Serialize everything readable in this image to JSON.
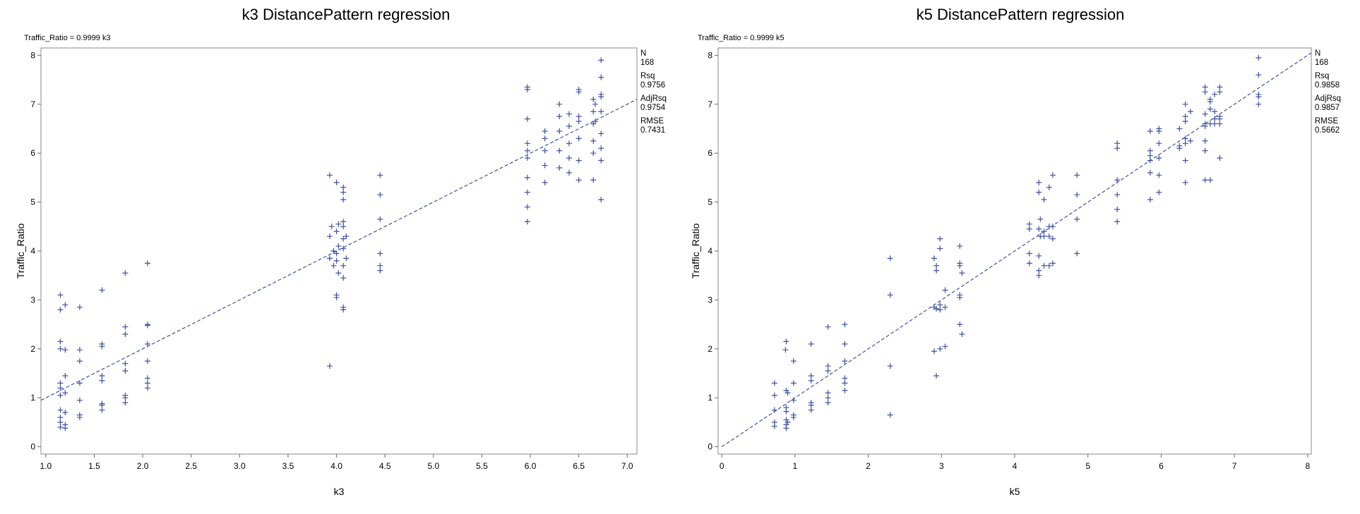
{
  "accent": "#3f51a3",
  "chart_data": [
    {
      "type": "scatter",
      "title": "k3 DistancePattern regression",
      "equation": "Traffic_Ratio = 0.9999 k3",
      "xlabel": "k3",
      "ylabel": "Traffic_Ratio",
      "xlim": [
        0.95,
        7.1
      ],
      "ylim": [
        -0.15,
        8.15
      ],
      "xticks": [
        "1.0",
        "1.5",
        "2.0",
        "2.5",
        "3.0",
        "3.5",
        "4.0",
        "4.5",
        "5.0",
        "5.5",
        "6.0",
        "6.5",
        "7.0"
      ],
      "yticks": [
        "0",
        "1",
        "2",
        "3",
        "4",
        "5",
        "6",
        "7",
        "8"
      ],
      "grid": false,
      "marker": "+",
      "fit": {
        "slope": 0.9999,
        "x_range": [
          0.95,
          7.1
        ]
      },
      "stats": [
        {
          "label": "N",
          "value": "168"
        },
        {
          "label": "Rsq",
          "value": "0.9756"
        },
        {
          "label": "AdjRsq",
          "value": "0.9754"
        },
        {
          "label": "RMSE",
          "value": "0.7431"
        }
      ],
      "points": [
        [
          1.15,
          3.1
        ],
        [
          1.15,
          2.8
        ],
        [
          1.2,
          2.9
        ],
        [
          1.15,
          2.15
        ],
        [
          1.15,
          2.0
        ],
        [
          1.2,
          1.98
        ],
        [
          1.2,
          1.45
        ],
        [
          1.15,
          1.3
        ],
        [
          1.15,
          1.2
        ],
        [
          1.2,
          1.1
        ],
        [
          1.15,
          1.05
        ],
        [
          1.15,
          0.75
        ],
        [
          1.2,
          0.7
        ],
        [
          1.15,
          0.6
        ],
        [
          1.15,
          0.5
        ],
        [
          1.2,
          0.45
        ],
        [
          1.15,
          0.4
        ],
        [
          1.2,
          0.38
        ],
        [
          1.35,
          2.85
        ],
        [
          1.35,
          1.98
        ],
        [
          1.35,
          1.75
        ],
        [
          1.35,
          1.3
        ],
        [
          1.35,
          0.95
        ],
        [
          1.35,
          0.65
        ],
        [
          1.35,
          0.6
        ],
        [
          1.58,
          3.2
        ],
        [
          1.58,
          2.1
        ],
        [
          1.58,
          2.05
        ],
        [
          1.58,
          1.45
        ],
        [
          1.58,
          1.35
        ],
        [
          1.58,
          0.88
        ],
        [
          1.58,
          0.85
        ],
        [
          1.58,
          0.75
        ],
        [
          1.82,
          3.55
        ],
        [
          1.82,
          2.45
        ],
        [
          1.82,
          2.3
        ],
        [
          1.82,
          1.7
        ],
        [
          1.82,
          1.55
        ],
        [
          1.82,
          1.05
        ],
        [
          1.82,
          1.0
        ],
        [
          1.82,
          0.9
        ],
        [
          2.05,
          3.75
        ],
        [
          2.05,
          2.5
        ],
        [
          2.05,
          2.48
        ],
        [
          2.05,
          2.1
        ],
        [
          2.05,
          1.75
        ],
        [
          2.05,
          1.4
        ],
        [
          2.05,
          1.3
        ],
        [
          2.05,
          1.2
        ],
        [
          3.93,
          5.55
        ],
        [
          3.95,
          4.5
        ],
        [
          3.93,
          4.3
        ],
        [
          3.97,
          4.0
        ],
        [
          3.93,
          3.85
        ],
        [
          3.97,
          3.7
        ],
        [
          3.93,
          1.65
        ],
        [
          4.0,
          5.4
        ],
        [
          4.02,
          4.55
        ],
        [
          4.0,
          4.4
        ],
        [
          4.02,
          4.1
        ],
        [
          4.0,
          3.95
        ],
        [
          4.0,
          3.8
        ],
        [
          4.02,
          3.55
        ],
        [
          4.0,
          3.1
        ],
        [
          4.0,
          3.05
        ],
        [
          4.07,
          5.3
        ],
        [
          4.07,
          5.2
        ],
        [
          4.07,
          5.05
        ],
        [
          4.07,
          4.6
        ],
        [
          4.07,
          4.5
        ],
        [
          4.1,
          4.3
        ],
        [
          4.07,
          4.25
        ],
        [
          4.07,
          4.05
        ],
        [
          4.1,
          3.85
        ],
        [
          4.07,
          3.7
        ],
        [
          4.07,
          3.45
        ],
        [
          4.07,
          2.85
        ],
        [
          4.07,
          2.8
        ],
        [
          4.45,
          5.55
        ],
        [
          4.45,
          5.15
        ],
        [
          4.45,
          4.65
        ],
        [
          4.45,
          3.95
        ],
        [
          4.45,
          3.7
        ],
        [
          4.45,
          3.6
        ],
        [
          5.97,
          7.35
        ],
        [
          5.97,
          7.3
        ],
        [
          5.97,
          6.7
        ],
        [
          5.97,
          6.2
        ],
        [
          5.97,
          6.05
        ],
        [
          5.97,
          5.9
        ],
        [
          5.97,
          5.5
        ],
        [
          5.97,
          5.2
        ],
        [
          5.97,
          4.9
        ],
        [
          5.97,
          4.6
        ],
        [
          6.15,
          6.45
        ],
        [
          6.15,
          6.3
        ],
        [
          6.15,
          6.05
        ],
        [
          6.15,
          5.75
        ],
        [
          6.15,
          5.4
        ],
        [
          6.3,
          7.0
        ],
        [
          6.3,
          6.75
        ],
        [
          6.3,
          6.45
        ],
        [
          6.3,
          6.05
        ],
        [
          6.3,
          5.7
        ],
        [
          6.4,
          6.8
        ],
        [
          6.4,
          6.55
        ],
        [
          6.4,
          6.2
        ],
        [
          6.4,
          5.9
        ],
        [
          6.4,
          5.6
        ],
        [
          6.5,
          7.3
        ],
        [
          6.5,
          7.25
        ],
        [
          6.5,
          6.75
        ],
        [
          6.5,
          6.65
        ],
        [
          6.5,
          6.3
        ],
        [
          6.5,
          5.85
        ],
        [
          6.5,
          5.45
        ],
        [
          6.65,
          7.1
        ],
        [
          6.67,
          7.0
        ],
        [
          6.65,
          6.85
        ],
        [
          6.67,
          6.65
        ],
        [
          6.65,
          6.6
        ],
        [
          6.65,
          6.25
        ],
        [
          6.65,
          6.0
        ],
        [
          6.65,
          5.45
        ],
        [
          6.73,
          7.9
        ],
        [
          6.73,
          7.55
        ],
        [
          6.73,
          7.2
        ],
        [
          6.73,
          7.15
        ],
        [
          6.73,
          6.85
        ],
        [
          6.73,
          6.4
        ],
        [
          6.73,
          6.1
        ],
        [
          6.73,
          5.85
        ],
        [
          6.73,
          5.05
        ]
      ]
    },
    {
      "type": "scatter",
      "title": "k5 DistancePattern regression",
      "equation": "Traffic_Ratio = 0.9999 k5",
      "xlabel": "k5",
      "ylabel": "Traffic_Ratio",
      "xlim": [
        -0.05,
        8.05
      ],
      "ylim": [
        -0.15,
        8.15
      ],
      "xticks": [
        "0",
        "1",
        "2",
        "3",
        "4",
        "5",
        "6",
        "7",
        "8"
      ],
      "yticks": [
        "0",
        "1",
        "2",
        "3",
        "4",
        "5",
        "6",
        "7",
        "8"
      ],
      "grid": false,
      "marker": "+",
      "fit": {
        "slope": 0.9999,
        "x_range": [
          0.0,
          8.05
        ]
      },
      "stats": [
        {
          "label": "N",
          "value": "168"
        },
        {
          "label": "Rsq",
          "value": "0.9858"
        },
        {
          "label": "AdjRsq",
          "value": "0.9857"
        },
        {
          "label": "RMSE",
          "value": "0.5662"
        }
      ],
      "points": [
        [
          0.72,
          1.3
        ],
        [
          0.72,
          1.05
        ],
        [
          0.72,
          0.75
        ],
        [
          0.72,
          0.5
        ],
        [
          0.72,
          0.42
        ],
        [
          0.88,
          2.15
        ],
        [
          0.87,
          1.98
        ],
        [
          0.88,
          1.15
        ],
        [
          0.9,
          1.1
        ],
        [
          0.88,
          0.8
        ],
        [
          0.88,
          0.72
        ],
        [
          0.88,
          0.55
        ],
        [
          0.9,
          0.5
        ],
        [
          0.88,
          0.45
        ],
        [
          0.88,
          0.38
        ],
        [
          0.98,
          1.75
        ],
        [
          0.98,
          1.3
        ],
        [
          0.98,
          0.95
        ],
        [
          0.98,
          0.65
        ],
        [
          0.98,
          0.6
        ],
        [
          1.22,
          2.1
        ],
        [
          1.22,
          1.45
        ],
        [
          1.22,
          1.35
        ],
        [
          1.22,
          0.9
        ],
        [
          1.22,
          0.85
        ],
        [
          1.22,
          0.75
        ],
        [
          1.45,
          2.45
        ],
        [
          1.45,
          1.65
        ],
        [
          1.45,
          1.55
        ],
        [
          1.45,
          1.1
        ],
        [
          1.45,
          1.0
        ],
        [
          1.45,
          0.9
        ],
        [
          1.68,
          2.5
        ],
        [
          1.68,
          2.1
        ],
        [
          1.68,
          1.75
        ],
        [
          1.68,
          1.4
        ],
        [
          1.68,
          1.3
        ],
        [
          1.68,
          1.15
        ],
        [
          2.3,
          3.85
        ],
        [
          2.3,
          3.1
        ],
        [
          2.3,
          1.65
        ],
        [
          2.3,
          0.65
        ],
        [
          2.9,
          3.85
        ],
        [
          2.93,
          3.7
        ],
        [
          2.93,
          3.6
        ],
        [
          2.9,
          2.85
        ],
        [
          2.93,
          2.82
        ],
        [
          2.9,
          1.95
        ],
        [
          2.93,
          1.45
        ],
        [
          2.98,
          4.25
        ],
        [
          2.98,
          4.05
        ],
        [
          2.98,
          2.9
        ],
        [
          2.98,
          2.8
        ],
        [
          2.98,
          2.0
        ],
        [
          3.05,
          3.2
        ],
        [
          3.05,
          2.85
        ],
        [
          3.05,
          2.05
        ],
        [
          3.25,
          4.1
        ],
        [
          3.25,
          3.75
        ],
        [
          3.25,
          3.7
        ],
        [
          3.28,
          3.55
        ],
        [
          3.25,
          3.1
        ],
        [
          3.25,
          3.05
        ],
        [
          3.25,
          2.5
        ],
        [
          3.28,
          2.3
        ],
        [
          4.2,
          4.55
        ],
        [
          4.2,
          4.45
        ],
        [
          4.2,
          3.95
        ],
        [
          4.2,
          3.75
        ],
        [
          4.33,
          5.4
        ],
        [
          4.33,
          5.2
        ],
        [
          4.35,
          4.65
        ],
        [
          4.33,
          4.45
        ],
        [
          4.35,
          4.3
        ],
        [
          4.33,
          3.9
        ],
        [
          4.33,
          3.6
        ],
        [
          4.33,
          3.5
        ],
        [
          4.4,
          5.05
        ],
        [
          4.4,
          4.4
        ],
        [
          4.4,
          4.3
        ],
        [
          4.4,
          3.7
        ],
        [
          4.47,
          5.3
        ],
        [
          4.47,
          4.5
        ],
        [
          4.47,
          4.3
        ],
        [
          4.47,
          3.7
        ],
        [
          4.52,
          5.55
        ],
        [
          4.52,
          4.5
        ],
        [
          4.52,
          4.25
        ],
        [
          4.52,
          3.75
        ],
        [
          4.85,
          5.55
        ],
        [
          4.85,
          5.15
        ],
        [
          4.85,
          4.65
        ],
        [
          4.85,
          3.95
        ],
        [
          5.4,
          6.2
        ],
        [
          5.4,
          6.1
        ],
        [
          5.4,
          5.45
        ],
        [
          5.4,
          5.15
        ],
        [
          5.4,
          4.85
        ],
        [
          5.4,
          4.6
        ],
        [
          5.85,
          6.45
        ],
        [
          5.85,
          6.05
        ],
        [
          5.85,
          5.95
        ],
        [
          5.85,
          5.85
        ],
        [
          5.85,
          5.6
        ],
        [
          5.85,
          5.05
        ],
        [
          5.97,
          6.5
        ],
        [
          5.97,
          6.45
        ],
        [
          5.97,
          6.2
        ],
        [
          5.97,
          5.9
        ],
        [
          5.97,
          5.55
        ],
        [
          5.97,
          5.2
        ],
        [
          6.25,
          6.5
        ],
        [
          6.25,
          6.15
        ],
        [
          6.25,
          6.1
        ],
        [
          6.33,
          7.0
        ],
        [
          6.33,
          6.75
        ],
        [
          6.33,
          6.65
        ],
        [
          6.33,
          6.3
        ],
        [
          6.33,
          6.2
        ],
        [
          6.33,
          5.85
        ],
        [
          6.33,
          5.4
        ],
        [
          6.4,
          6.85
        ],
        [
          6.4,
          6.25
        ],
        [
          6.6,
          7.35
        ],
        [
          6.6,
          7.25
        ],
        [
          6.6,
          6.8
        ],
        [
          6.6,
          6.6
        ],
        [
          6.6,
          6.55
        ],
        [
          6.6,
          6.25
        ],
        [
          6.6,
          6.05
        ],
        [
          6.6,
          5.45
        ],
        [
          6.67,
          7.1
        ],
        [
          6.67,
          7.05
        ],
        [
          6.67,
          6.9
        ],
        [
          6.67,
          6.6
        ],
        [
          6.67,
          5.45
        ],
        [
          6.73,
          7.2
        ],
        [
          6.73,
          6.85
        ],
        [
          6.73,
          6.7
        ],
        [
          6.73,
          6.6
        ],
        [
          6.8,
          7.35
        ],
        [
          6.8,
          7.25
        ],
        [
          6.8,
          6.75
        ],
        [
          6.8,
          6.7
        ],
        [
          6.8,
          6.6
        ],
        [
          6.8,
          5.9
        ],
        [
          7.33,
          7.95
        ],
        [
          7.33,
          7.6
        ],
        [
          7.33,
          7.2
        ],
        [
          7.33,
          7.15
        ],
        [
          7.33,
          7.0
        ]
      ]
    }
  ]
}
